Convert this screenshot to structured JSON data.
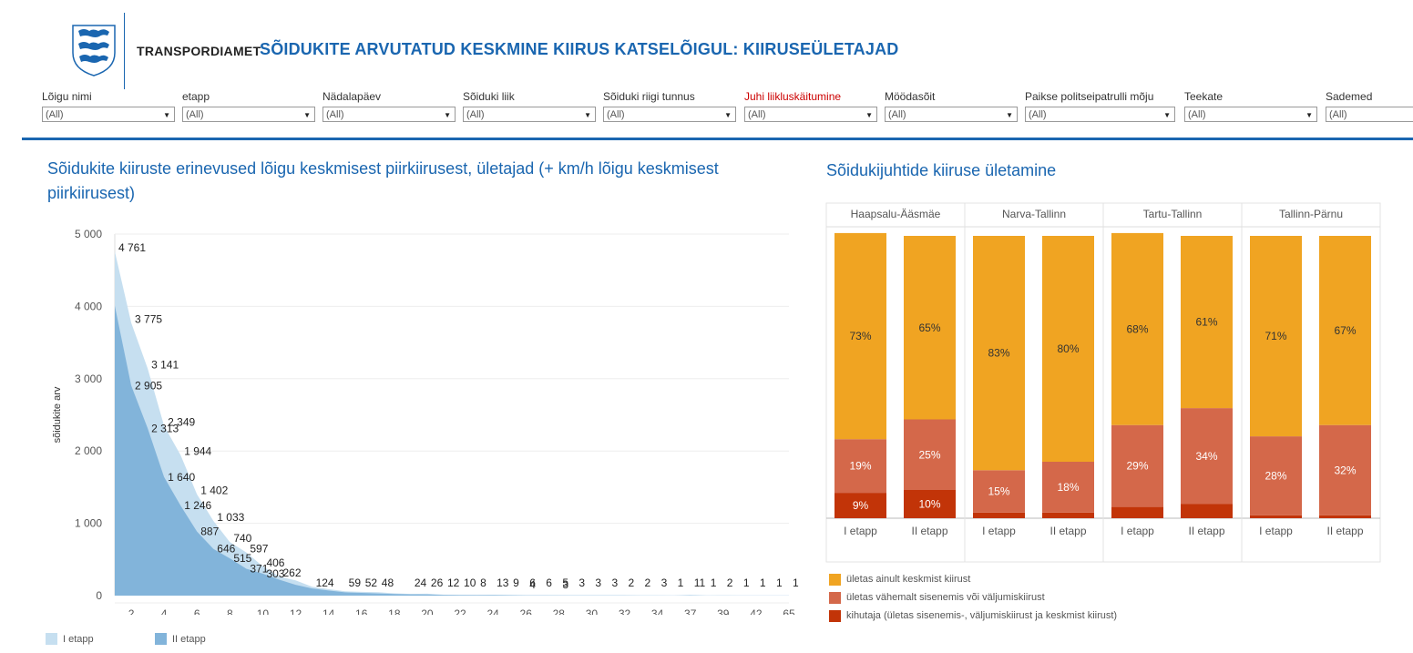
{
  "header": {
    "brand": "TRANSPORDIAMET",
    "title": "SÕIDUKITE  ARVUTATUD KESKMINE KIIRUS KATSELÕIGUL: KIIRUSEÜLETAJAD"
  },
  "filters": [
    {
      "label": "Lõigu nimi",
      "value": "(All)",
      "highlight": false
    },
    {
      "label": "etapp",
      "value": "(All)",
      "highlight": false
    },
    {
      "label": "Nädalapäev",
      "value": "(All)",
      "highlight": false
    },
    {
      "label": "Sõiduki liik",
      "value": "(All)",
      "highlight": false
    },
    {
      "label": "Sõiduki riigi tunnus",
      "value": "(All)",
      "highlight": false
    },
    {
      "label": "Juhi liikluskäitumine",
      "value": "(All)",
      "highlight": true
    },
    {
      "label": "Möödasõit",
      "value": "(All)",
      "highlight": false
    },
    {
      "label": "Paikse politseipatrulli mõju",
      "value": "(All)",
      "highlight": false
    },
    {
      "label": "Teekate",
      "value": "(All)",
      "highlight": false
    },
    {
      "label": "Sademed",
      "value": "(All)",
      "highlight": false
    }
  ],
  "colors": {
    "accent": "#1a66b0",
    "etapp1": "#c6dff0",
    "etapp2": "#82b4da",
    "only_avg": "#f0a422",
    "entry_exit": "#d4684a",
    "speeder": "#c23408"
  },
  "chart_data": [
    {
      "type": "area",
      "title": "Sõidukite kiiruste erinevused lõigu keskmisest piirkiirusest, ületajad (+ km/h lõigu keskmisest piirkiirusest)",
      "ylabel": "sõidukite arv",
      "xlabel": "",
      "ylim": [
        0,
        5000
      ],
      "y_ticks": [
        "5 000",
        "4 000",
        "3 000",
        "2 000",
        "1 000",
        "0"
      ],
      "y_tick_values": [
        5000,
        4000,
        3000,
        2000,
        1000,
        0
      ],
      "x_ticks": [
        "2",
        "4",
        "6",
        "8",
        "10",
        "12",
        "14",
        "16",
        "18",
        "20",
        "22",
        "24",
        "26",
        "28",
        "30",
        "32",
        "34",
        "37",
        "39",
        "42",
        "65"
      ],
      "x_tick_index": [
        1,
        3,
        5,
        7,
        9,
        11,
        13,
        15,
        17,
        19,
        21,
        23,
        25,
        27,
        29,
        31,
        33,
        35,
        37,
        39,
        41
      ],
      "series": [
        {
          "name": "I etapp",
          "color": "#c6dff0",
          "values": [
            4761,
            3775,
            3141,
            2349,
            1944,
            1402,
            1033,
            740,
            597,
            406,
            262,
            210,
            124,
            90,
            59,
            52,
            48,
            32,
            24,
            26,
            12,
            10,
            8,
            13,
            9,
            6,
            6,
            5,
            3,
            3,
            3,
            2,
            2,
            3,
            1,
            11,
            1,
            2,
            1,
            1,
            1,
            1
          ],
          "labels": [
            "4 761",
            "3 775",
            "3 141",
            "2 349",
            "1 944",
            "1 402",
            "1 033",
            "740",
            "597",
            "406",
            "262",
            "",
            "124",
            "",
            "59",
            "52",
            "48",
            "",
            "24",
            "26",
            "12",
            "10",
            "8",
            "13",
            "9",
            "6",
            "6",
            "5",
            "3",
            "3",
            "3",
            "2",
            "2",
            "3",
            "1",
            "11",
            "1",
            "2",
            "1",
            "1",
            "1",
            "1"
          ]
        },
        {
          "name": "II etapp",
          "color": "#82b4da",
          "values": [
            4010,
            2905,
            2313,
            1640,
            1246,
            887,
            646,
            515,
            371,
            303,
            220,
            150,
            100,
            70,
            45,
            38,
            30,
            22,
            18,
            15,
            10,
            8,
            7,
            6,
            5,
            4,
            4,
            3,
            2,
            2,
            2,
            2,
            1,
            1,
            1,
            1,
            1,
            1,
            1,
            1,
            1,
            1
          ],
          "labels": [
            "",
            "2 905",
            "2 313",
            "1 640",
            "1 246",
            "887",
            "646",
            "515",
            "371",
            "303",
            "",
            "",
            "",
            "",
            "",
            "",
            "",
            "",
            "",
            "",
            "",
            "",
            "",
            "",
            "",
            "4",
            "",
            "3",
            "",
            "",
            "",
            "",
            "",
            "",
            "",
            "",
            "",
            "",
            "",
            "",
            "",
            ""
          ]
        }
      ]
    },
    {
      "type": "bar",
      "stacked": "percent",
      "title": "Sõidukijuhtide kiiruse ületamine",
      "groups": [
        "Haapsalu-Ääsmäe",
        "Narva-Tallinn",
        "Tartu-Tallinn",
        "Tallinn-Pärnu"
      ],
      "categories": [
        "I etapp",
        "II etapp"
      ],
      "series": [
        {
          "name": "ületas ainult keskmist kiirust",
          "color": "#f0a422",
          "values": [
            [
              73,
              65
            ],
            [
              83,
              80
            ],
            [
              68,
              61
            ],
            [
              71,
              67
            ]
          ],
          "labels": [
            [
              "73%",
              "65%"
            ],
            [
              "83%",
              "80%"
            ],
            [
              "68%",
              "61%"
            ],
            [
              "71%",
              "67%"
            ]
          ]
        },
        {
          "name": "ületas vähemalt sisenemis või väljumiskiirust",
          "color": "#d4684a",
          "values": [
            [
              19,
              25
            ],
            [
              15,
              18
            ],
            [
              29,
              34
            ],
            [
              28,
              32
            ]
          ],
          "labels": [
            [
              "19%",
              "25%"
            ],
            [
              "15%",
              "18%"
            ],
            [
              "29%",
              "34%"
            ],
            [
              "28%",
              "32%"
            ]
          ]
        },
        {
          "name": "kihutaja (ületas sisenemis-, väljumiskiirust ja keskmist kiirust)",
          "color": "#c23408",
          "values": [
            [
              9,
              10
            ],
            [
              2,
              2
            ],
            [
              4,
              5
            ],
            [
              1,
              1
            ]
          ],
          "labels": [
            [
              "9%",
              "10%"
            ],
            [
              "",
              ""
            ],
            [
              "",
              ""
            ],
            [
              "",
              ""
            ]
          ]
        }
      ]
    }
  ]
}
